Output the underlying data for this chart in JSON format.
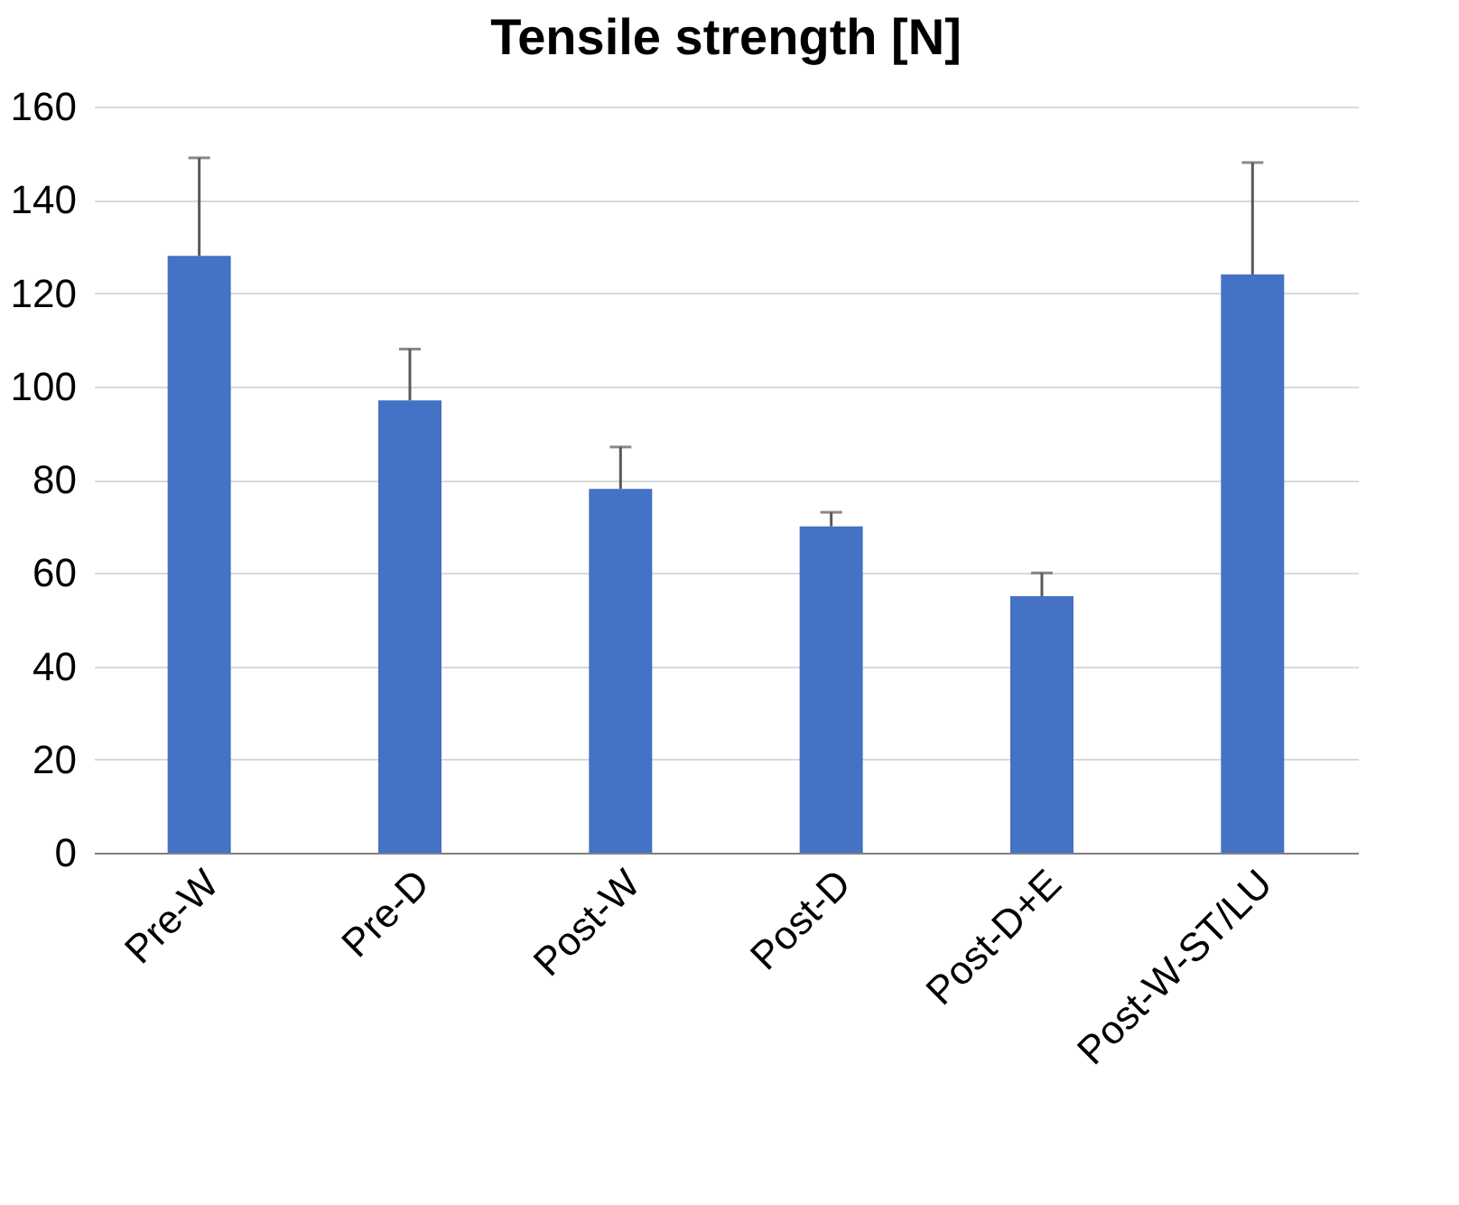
{
  "chart_data": {
    "type": "bar",
    "title": "Tensile strength [N]",
    "categories": [
      "Pre-W",
      "Pre-D",
      "Post-W",
      "Post-D",
      "Post-D+E",
      "Post-W-ST/LU"
    ],
    "values": [
      128,
      97,
      78,
      70,
      55,
      124
    ],
    "errors": [
      [
        128,
        149
      ],
      [
        97,
        108
      ],
      [
        78,
        87
      ],
      [
        70,
        73
      ],
      [
        55,
        60
      ],
      [
        124,
        148
      ]
    ],
    "color": "#4472c4",
    "ylim": [
      0,
      160
    ],
    "yticks": [
      0,
      20,
      40,
      60,
      80,
      100,
      120,
      140,
      160
    ],
    "grid": "y"
  }
}
